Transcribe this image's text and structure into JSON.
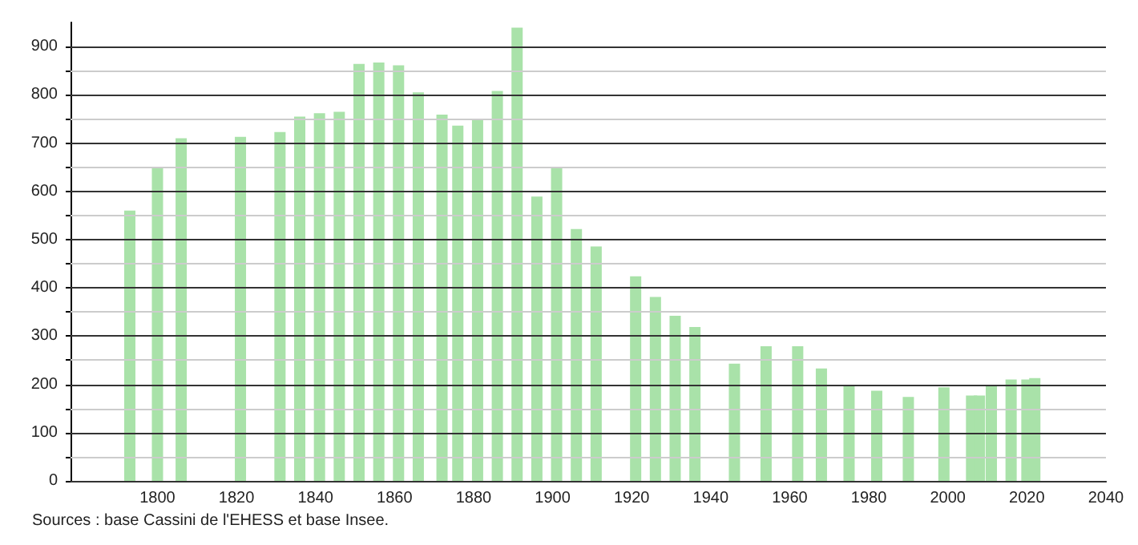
{
  "chart_data": {
    "type": "bar",
    "color": "#a9e2a9",
    "x": [
      1793,
      1800,
      1806,
      1821,
      1831,
      1836,
      1841,
      1846,
      1851,
      1856,
      1861,
      1866,
      1872,
      1876,
      1881,
      1886,
      1891,
      1896,
      1901,
      1906,
      1911,
      1921,
      1926,
      1931,
      1936,
      1946,
      1954,
      1962,
      1968,
      1975,
      1982,
      1990,
      1999,
      2006,
      2008,
      2011,
      2016,
      2020,
      2022
    ],
    "values": [
      560,
      650,
      710,
      713,
      723,
      755,
      762,
      765,
      864,
      867,
      861,
      805,
      759,
      736,
      749,
      808,
      939,
      589,
      649,
      522,
      486,
      424,
      381,
      342,
      319,
      243,
      279,
      279,
      233,
      199,
      187,
      174,
      194,
      177,
      177,
      199,
      210,
      210,
      213
    ],
    "xlim": [
      1778,
      2040
    ],
    "xticks": [
      1800,
      1820,
      1840,
      1860,
      1880,
      1900,
      1920,
      1940,
      1960,
      1980,
      2000,
      2020,
      2040
    ],
    "ylim": [
      0,
      950
    ],
    "yticks": [
      0,
      {
        "value": 50,
        "label": null
      },
      100,
      {
        "value": 150,
        "label": null
      },
      200,
      {
        "value": 250,
        "label": null
      },
      300,
      {
        "value": 350,
        "label": null
      },
      400,
      {
        "value": 450,
        "label": null
      },
      500,
      {
        "value": 550,
        "label": null
      },
      600,
      {
        "value": 650,
        "label": null
      },
      700,
      {
        "value": 750,
        "label": null
      },
      800,
      {
        "value": 850,
        "label": null
      },
      900
    ],
    "grid": "y",
    "annotations": [
      "Sources : base Cassini de l'EHESS et base Insee."
    ]
  }
}
